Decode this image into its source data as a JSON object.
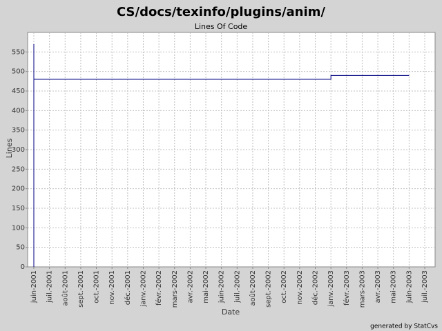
{
  "chart_data": {
    "type": "line",
    "title": "CS/docs/texinfo/plugins/anim/",
    "subtitle": "Lines Of Code",
    "x_label": "Date",
    "y_label": "Lines",
    "annotation": "generated by StatCvs",
    "x": [
      "2001-06",
      "2001-06",
      "2001-06",
      "2003-01",
      "2003-01",
      "2003-06"
    ],
    "series": [
      {
        "name": "Lines",
        "color": "#000080",
        "values": [
          0,
          570,
          480,
          480,
          490,
          490
        ]
      }
    ],
    "xlim": [
      "2001-06",
      "2003-07"
    ],
    "xticks": [
      {
        "value": "2001-06",
        "label": "juin-2001"
      },
      {
        "value": "2001-07",
        "label": "juil.-2001"
      },
      {
        "value": "2001-08",
        "label": "août-2001"
      },
      {
        "value": "2001-09",
        "label": "sept.-2001"
      },
      {
        "value": "2001-10",
        "label": "oct.-2001"
      },
      {
        "value": "2001-11",
        "label": "nov.-2001"
      },
      {
        "value": "2001-12",
        "label": "déc.-2001"
      },
      {
        "value": "2002-01",
        "label": "janv.-2002"
      },
      {
        "value": "2002-02",
        "label": "févr.-2002"
      },
      {
        "value": "2002-03",
        "label": "mars-2002"
      },
      {
        "value": "2002-04",
        "label": "avr.-2002"
      },
      {
        "value": "2002-05",
        "label": "mai-2002"
      },
      {
        "value": "2002-06",
        "label": "juin-2002"
      },
      {
        "value": "2002-07",
        "label": "juil.-2002"
      },
      {
        "value": "2002-08",
        "label": "août-2002"
      },
      {
        "value": "2002-09",
        "label": "sept.-2002"
      },
      {
        "value": "2002-10",
        "label": "oct.-2002"
      },
      {
        "value": "2002-11",
        "label": "nov.-2002"
      },
      {
        "value": "2002-12",
        "label": "déc.-2002"
      },
      {
        "value": "2003-01",
        "label": "janv.-2003"
      },
      {
        "value": "2003-02",
        "label": "févr.-2003"
      },
      {
        "value": "2003-03",
        "label": "mars-2003"
      },
      {
        "value": "2003-04",
        "label": "avr.-2003"
      },
      {
        "value": "2003-05",
        "label": "mai-2003"
      },
      {
        "value": "2003-06",
        "label": "juin-2003"
      },
      {
        "value": "2003-07",
        "label": "juil.-2003"
      }
    ],
    "ylim": [
      0,
      600
    ],
    "yticks": [
      0,
      50,
      100,
      150,
      200,
      250,
      300,
      350,
      400,
      450,
      500,
      550
    ],
    "grid": true
  }
}
